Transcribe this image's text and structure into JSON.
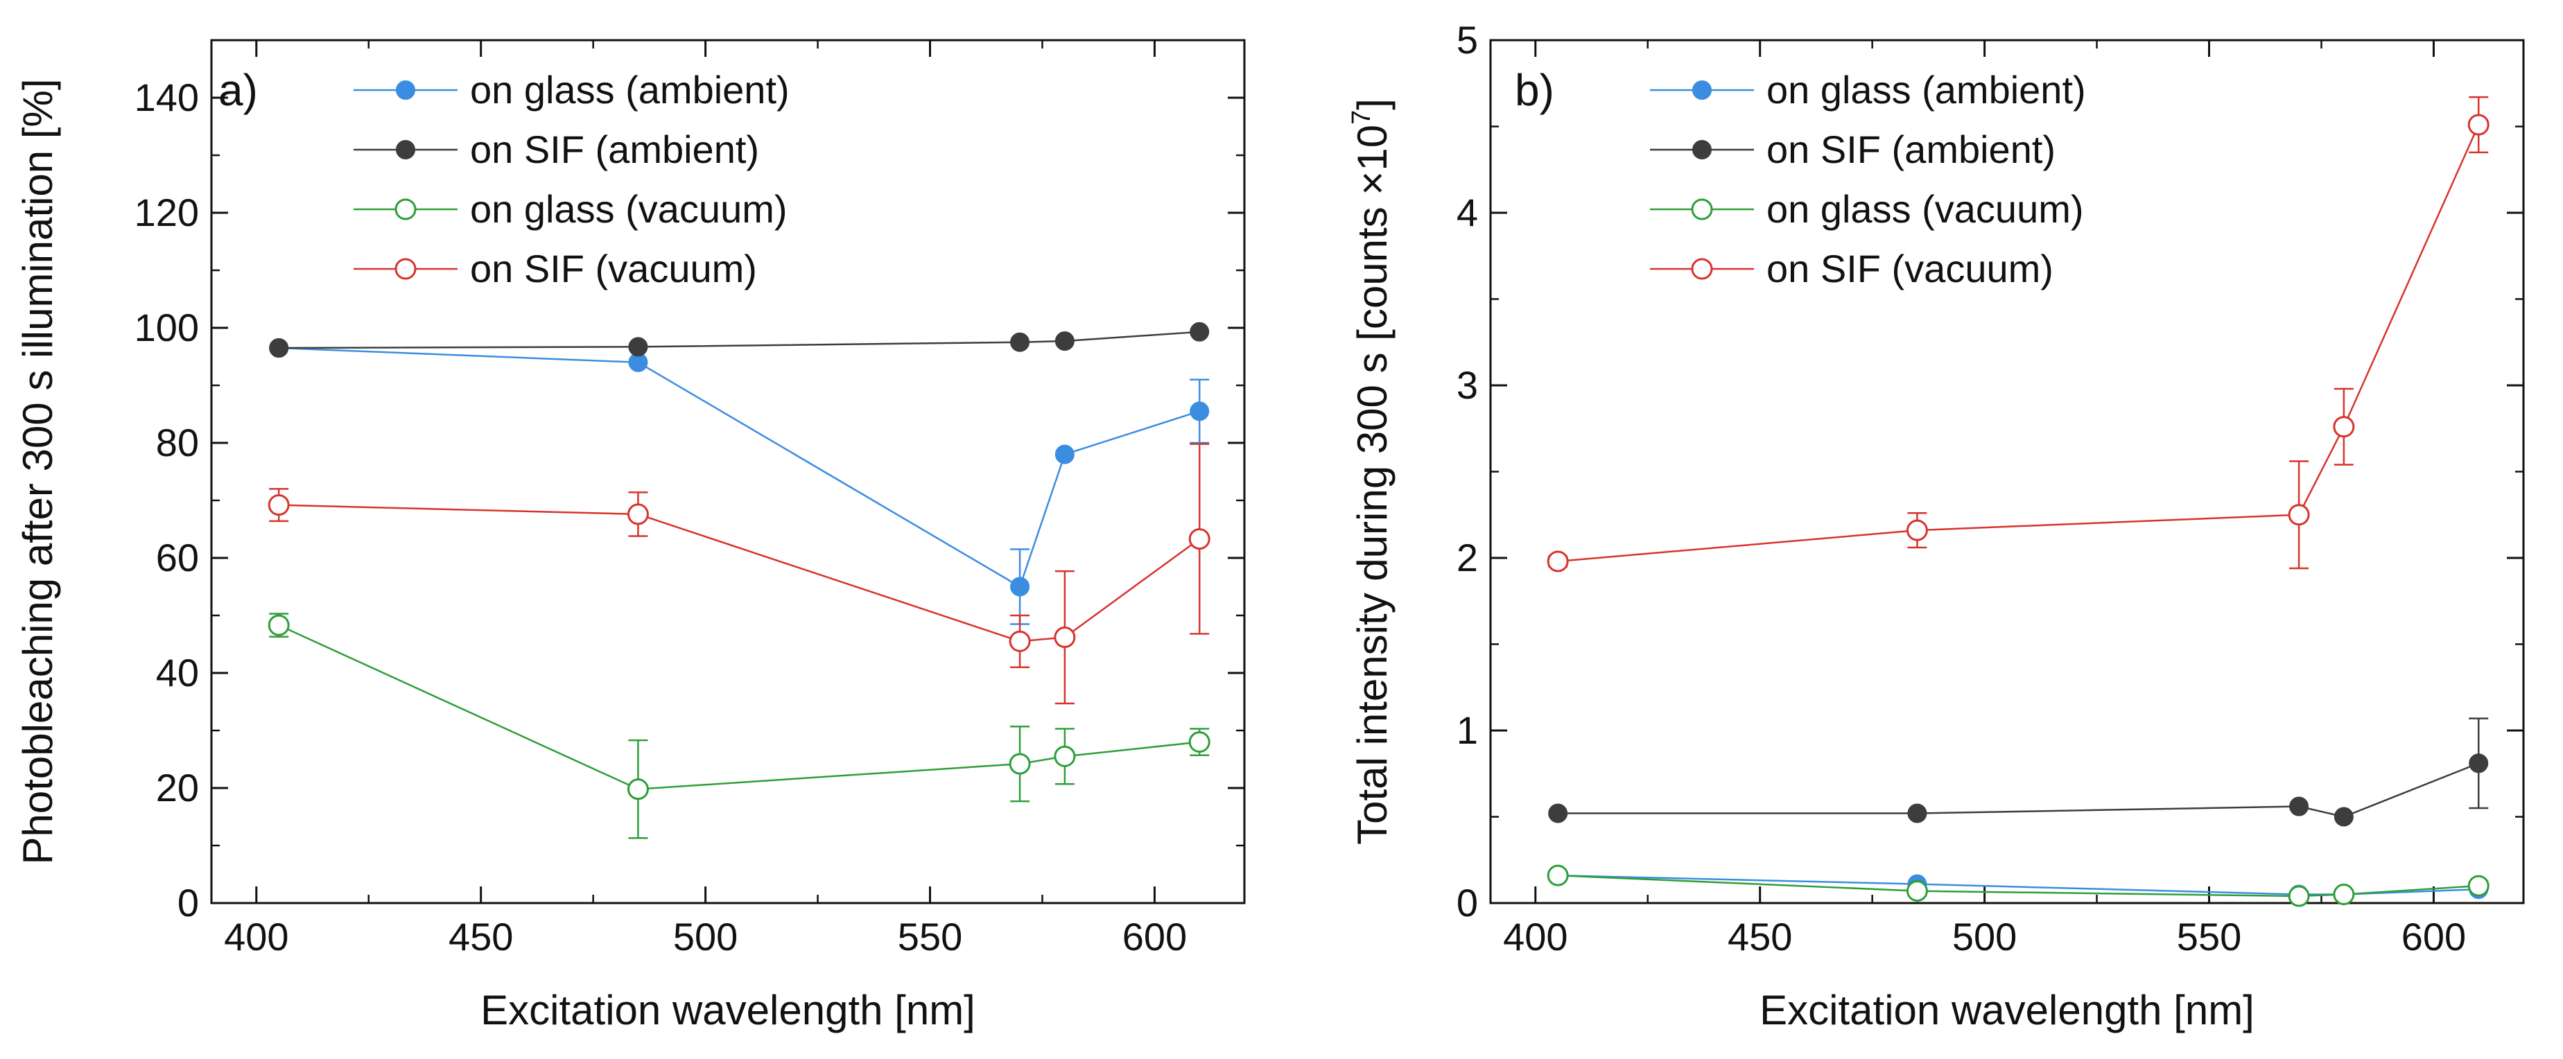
{
  "chart_data": [
    {
      "type": "line",
      "panel_label": "a)",
      "xlabel": "Excitation wavelength [nm]",
      "ylabel": "Photobleaching after 300 s illumination [%]",
      "xlim": [
        390,
        620
      ],
      "ylim": [
        0,
        150
      ],
      "xticks": [
        400,
        450,
        500,
        550,
        600
      ],
      "yticks": [
        0,
        20,
        40,
        60,
        80,
        100,
        120,
        140
      ],
      "x_minor": 25,
      "y_minor": 10,
      "legend_position": "top-left",
      "series": [
        {
          "name": "on glass (ambient)",
          "color": "#3a8de0",
          "marker": "filled-circle",
          "x": [
            405,
            485,
            570,
            580,
            610
          ],
          "y": [
            96.5,
            94,
            55,
            78,
            85.5
          ],
          "err": [
            0,
            0,
            6.5,
            0,
            5.5
          ]
        },
        {
          "name": "on SIF (ambient)",
          "color": "#3d3d3d",
          "marker": "filled-circle",
          "x": [
            405,
            485,
            570,
            580,
            610
          ],
          "y": [
            96.5,
            96.7,
            97.5,
            97.7,
            99.3
          ],
          "err": [
            0,
            0,
            0,
            0,
            0
          ]
        },
        {
          "name": "on glass (vacuum)",
          "color": "#2e9e3a",
          "marker": "open-circle",
          "x": [
            405,
            485,
            570,
            580,
            610
          ],
          "y": [
            48.3,
            19.8,
            24.2,
            25.5,
            28
          ],
          "err": [
            2,
            8.5,
            6.5,
            4.8,
            2.3
          ]
        },
        {
          "name": "on SIF (vacuum)",
          "color": "#d8332d",
          "marker": "open-circle",
          "x": [
            405,
            485,
            570,
            580,
            610
          ],
          "y": [
            69.2,
            67.6,
            45.5,
            46.2,
            63.3
          ],
          "err": [
            2.8,
            3.8,
            4.5,
            11.5,
            16.5
          ]
        }
      ]
    },
    {
      "type": "line",
      "panel_label": "b)",
      "xlabel": "Excitation wavelength [nm]",
      "ylabel": "Total intensity during 300 s [counts ×10",
      "ylabel_sup": "7",
      "ylabel_end": "]",
      "xlim": [
        390,
        620
      ],
      "ylim": [
        0,
        5
      ],
      "xticks": [
        400,
        450,
        500,
        550,
        600
      ],
      "yticks": [
        0,
        1,
        2,
        3,
        4,
        5
      ],
      "x_minor": 25,
      "y_minor": 0.5,
      "legend_position": "top-left",
      "series": [
        {
          "name": "on glass (ambient)",
          "color": "#3a8de0",
          "marker": "filled-circle",
          "x": [
            405,
            485,
            570,
            580,
            610
          ],
          "y": [
            0.16,
            0.11,
            0.05,
            0.05,
            0.08
          ],
          "err": [
            0,
            0,
            0,
            0,
            0
          ]
        },
        {
          "name": "on SIF (ambient)",
          "color": "#3d3d3d",
          "marker": "filled-circle",
          "x": [
            405,
            485,
            570,
            580,
            610
          ],
          "y": [
            0.52,
            0.52,
            0.56,
            0.5,
            0.81
          ],
          "err": [
            0,
            0,
            0,
            0,
            0.26
          ]
        },
        {
          "name": "on glass (vacuum)",
          "color": "#2e9e3a",
          "marker": "open-circle",
          "x": [
            405,
            485,
            570,
            580,
            610
          ],
          "y": [
            0.16,
            0.07,
            0.04,
            0.05,
            0.1
          ],
          "err": [
            0,
            0,
            0,
            0,
            0
          ]
        },
        {
          "name": "on SIF (vacuum)",
          "color": "#d8332d",
          "marker": "open-circle",
          "x": [
            405,
            485,
            570,
            580,
            610
          ],
          "y": [
            1.98,
            2.16,
            2.25,
            2.76,
            4.51
          ],
          "err": [
            0.03,
            0.1,
            0.31,
            0.22,
            0.16
          ]
        }
      ]
    }
  ]
}
